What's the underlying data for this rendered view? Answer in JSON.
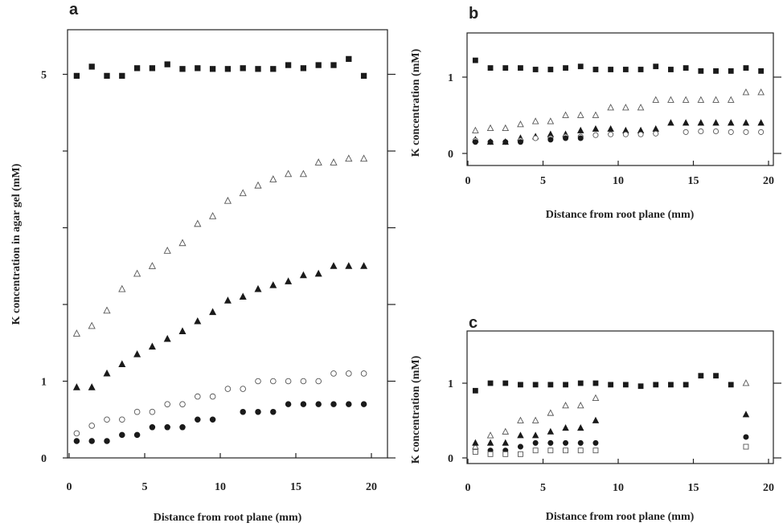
{
  "chart_data": [
    {
      "id": "a",
      "type": "scatter",
      "panel_label": "a",
      "xlabel": "Distance from root plane (mm)",
      "ylabel": "K concentration in agar gel (mM)",
      "xlim": [
        0,
        20
      ],
      "ylim": [
        0,
        5.5
      ],
      "x_ticks": [
        0,
        5,
        10,
        15,
        20
      ],
      "y_ticks": [
        {
          "value": 0,
          "label": "0"
        },
        {
          "value": 1,
          "label": "1"
        },
        {
          "value": 2,
          "label": ""
        },
        {
          "value": 3,
          "label": ""
        },
        {
          "value": 4,
          "label": ""
        },
        {
          "value": 5,
          "label": "5"
        }
      ],
      "grid": false,
      "series": [
        {
          "marker": "square-filled",
          "points": [
            [
              0.5,
              4.98
            ],
            [
              1.5,
              5.1
            ],
            [
              2.5,
              4.98
            ],
            [
              3.5,
              4.98
            ],
            [
              4.5,
              5.08
            ],
            [
              5.5,
              5.08
            ],
            [
              6.5,
              5.13
            ],
            [
              7.5,
              5.07
            ],
            [
              8.5,
              5.08
            ],
            [
              9.5,
              5.07
            ],
            [
              10.5,
              5.07
            ],
            [
              11.5,
              5.08
            ],
            [
              12.5,
              5.07
            ],
            [
              13.5,
              5.07
            ],
            [
              14.5,
              5.12
            ],
            [
              15.5,
              5.08
            ],
            [
              16.5,
              5.12
            ],
            [
              17.5,
              5.12
            ],
            [
              18.5,
              5.2
            ],
            [
              19.5,
              4.98
            ]
          ]
        },
        {
          "marker": "triangle-open",
          "points": [
            [
              0.5,
              1.62
            ],
            [
              1.5,
              1.72
            ],
            [
              2.5,
              1.92
            ],
            [
              3.5,
              2.2
            ],
            [
              4.5,
              2.4
            ],
            [
              5.5,
              2.5
            ],
            [
              6.5,
              2.7
            ],
            [
              7.5,
              2.8
            ],
            [
              8.5,
              3.05
            ],
            [
              9.5,
              3.15
            ],
            [
              10.5,
              3.35
            ],
            [
              11.5,
              3.45
            ],
            [
              12.5,
              3.55
            ],
            [
              13.5,
              3.63
            ],
            [
              14.5,
              3.7
            ],
            [
              15.5,
              3.7
            ],
            [
              16.5,
              3.85
            ],
            [
              17.5,
              3.85
            ],
            [
              18.5,
              3.9
            ],
            [
              19.5,
              3.9
            ]
          ]
        },
        {
          "marker": "triangle-filled",
          "points": [
            [
              0.5,
              0.92
            ],
            [
              1.5,
              0.92
            ],
            [
              2.5,
              1.1
            ],
            [
              3.5,
              1.22
            ],
            [
              4.5,
              1.35
            ],
            [
              5.5,
              1.45
            ],
            [
              6.5,
              1.55
            ],
            [
              7.5,
              1.65
            ],
            [
              8.5,
              1.78
            ],
            [
              9.5,
              1.9
            ],
            [
              10.5,
              2.05
            ],
            [
              11.5,
              2.1
            ],
            [
              12.5,
              2.2
            ],
            [
              13.5,
              2.25
            ],
            [
              14.5,
              2.3
            ],
            [
              15.5,
              2.38
            ],
            [
              16.5,
              2.4
            ],
            [
              17.5,
              2.5
            ],
            [
              18.5,
              2.5
            ],
            [
              19.5,
              2.5
            ]
          ]
        },
        {
          "marker": "circle-open",
          "points": [
            [
              0.5,
              0.32
            ],
            [
              1.5,
              0.42
            ],
            [
              2.5,
              0.5
            ],
            [
              3.5,
              0.5
            ],
            [
              4.5,
              0.6
            ],
            [
              5.5,
              0.6
            ],
            [
              6.5,
              0.7
            ],
            [
              7.5,
              0.7
            ],
            [
              8.5,
              0.8
            ],
            [
              9.5,
              0.8
            ],
            [
              10.5,
              0.9
            ],
            [
              11.5,
              0.9
            ],
            [
              12.5,
              1.0
            ],
            [
              13.5,
              1.0
            ],
            [
              14.5,
              1.0
            ],
            [
              15.5,
              1.0
            ],
            [
              16.5,
              1.0
            ],
            [
              17.5,
              1.1
            ],
            [
              18.5,
              1.1
            ],
            [
              19.5,
              1.1
            ]
          ]
        },
        {
          "marker": "circle-filled",
          "points": [
            [
              0.5,
              0.22
            ],
            [
              1.5,
              0.22
            ],
            [
              2.5,
              0.22
            ],
            [
              3.5,
              0.3
            ],
            [
              4.5,
              0.3
            ],
            [
              5.5,
              0.4
            ],
            [
              6.5,
              0.4
            ],
            [
              7.5,
              0.4
            ],
            [
              8.5,
              0.5
            ],
            [
              9.5,
              0.5
            ],
            [
              11.5,
              0.6
            ],
            [
              12.5,
              0.6
            ],
            [
              13.5,
              0.6
            ],
            [
              14.5,
              0.7
            ],
            [
              15.5,
              0.7
            ],
            [
              16.5,
              0.7
            ],
            [
              17.5,
              0.7
            ],
            [
              18.5,
              0.7
            ],
            [
              19.5,
              0.7
            ]
          ]
        }
      ]
    },
    {
      "id": "b",
      "type": "scatter",
      "panel_label": "b",
      "xlabel": "Distance from root plane (mm)",
      "ylabel": "K concentration (mM)",
      "xlim": [
        0,
        20
      ],
      "ylim": [
        0,
        1.5
      ],
      "x_ticks": [
        0,
        5,
        10,
        15,
        20
      ],
      "y_ticks": [
        {
          "value": 0,
          "label": "0"
        },
        {
          "value": 1,
          "label": "1"
        }
      ],
      "grid": false,
      "series": [
        {
          "marker": "square-filled",
          "points": [
            [
              0.5,
              1.22
            ],
            [
              1.5,
              1.12
            ],
            [
              2.5,
              1.12
            ],
            [
              3.5,
              1.12
            ],
            [
              4.5,
              1.1
            ],
            [
              5.5,
              1.1
            ],
            [
              6.5,
              1.12
            ],
            [
              7.5,
              1.14
            ],
            [
              8.5,
              1.1
            ],
            [
              9.5,
              1.1
            ],
            [
              10.5,
              1.1
            ],
            [
              11.5,
              1.1
            ],
            [
              12.5,
              1.14
            ],
            [
              13.5,
              1.1
            ],
            [
              14.5,
              1.12
            ],
            [
              15.5,
              1.08
            ],
            [
              16.5,
              1.08
            ],
            [
              17.5,
              1.08
            ],
            [
              18.5,
              1.12
            ],
            [
              19.5,
              1.08
            ]
          ]
        },
        {
          "marker": "triangle-open",
          "points": [
            [
              0.5,
              0.3
            ],
            [
              1.5,
              0.33
            ],
            [
              2.5,
              0.33
            ],
            [
              3.5,
              0.38
            ],
            [
              4.5,
              0.42
            ],
            [
              5.5,
              0.42
            ],
            [
              6.5,
              0.5
            ],
            [
              7.5,
              0.5
            ],
            [
              8.5,
              0.5
            ],
            [
              9.5,
              0.6
            ],
            [
              10.5,
              0.6
            ],
            [
              11.5,
              0.6
            ],
            [
              12.5,
              0.7
            ],
            [
              13.5,
              0.7
            ],
            [
              14.5,
              0.7
            ],
            [
              15.5,
              0.7
            ],
            [
              16.5,
              0.7
            ],
            [
              17.5,
              0.7
            ],
            [
              18.5,
              0.8
            ],
            [
              19.5,
              0.8
            ]
          ]
        },
        {
          "marker": "triangle-filled",
          "points": [
            [
              0.5,
              0.18
            ],
            [
              1.5,
              0.15
            ],
            [
              2.5,
              0.15
            ],
            [
              3.5,
              0.2
            ],
            [
              4.5,
              0.22
            ],
            [
              5.5,
              0.25
            ],
            [
              6.5,
              0.25
            ],
            [
              7.5,
              0.3
            ],
            [
              8.5,
              0.32
            ],
            [
              9.5,
              0.32
            ],
            [
              10.5,
              0.3
            ],
            [
              11.5,
              0.3
            ],
            [
              12.5,
              0.32
            ],
            [
              13.5,
              0.4
            ],
            [
              14.5,
              0.4
            ],
            [
              15.5,
              0.4
            ],
            [
              16.5,
              0.4
            ],
            [
              17.5,
              0.4
            ],
            [
              18.5,
              0.4
            ],
            [
              19.5,
              0.4
            ]
          ]
        },
        {
          "marker": "circle-open",
          "points": [
            [
              0.5,
              0.17
            ],
            [
              3.5,
              0.17
            ],
            [
              4.5,
              0.2
            ],
            [
              5.5,
              0.2
            ],
            [
              6.5,
              0.22
            ],
            [
              7.5,
              0.22
            ],
            [
              8.5,
              0.24
            ],
            [
              9.5,
              0.25
            ],
            [
              10.5,
              0.25
            ],
            [
              11.5,
              0.25
            ],
            [
              12.5,
              0.26
            ],
            [
              14.5,
              0.28
            ],
            [
              15.5,
              0.29
            ],
            [
              16.5,
              0.29
            ],
            [
              17.5,
              0.28
            ],
            [
              18.5,
              0.28
            ],
            [
              19.5,
              0.28
            ]
          ]
        },
        {
          "marker": "circle-filled",
          "points": [
            [
              0.5,
              0.15
            ],
            [
              1.5,
              0.15
            ],
            [
              2.5,
              0.15
            ],
            [
              3.5,
              0.15
            ],
            [
              5.5,
              0.18
            ],
            [
              6.5,
              0.2
            ],
            [
              7.5,
              0.2
            ]
          ]
        }
      ]
    },
    {
      "id": "c",
      "type": "scatter",
      "panel_label": "c",
      "xlabel": "Distance from root plane (mm)",
      "ylabel": "K concentration  (mM)",
      "xlim": [
        0,
        20
      ],
      "ylim": [
        0,
        1.5
      ],
      "x_ticks": [
        0,
        5,
        10,
        15,
        20
      ],
      "y_ticks": [
        {
          "value": 0,
          "label": "0"
        },
        {
          "value": 1,
          "label": "1"
        }
      ],
      "grid": false,
      "series": [
        {
          "marker": "square-filled",
          "points": [
            [
              0.5,
              0.9
            ],
            [
              1.5,
              1.0
            ],
            [
              2.5,
              1.0
            ],
            [
              3.5,
              0.98
            ],
            [
              4.5,
              0.98
            ],
            [
              5.5,
              0.98
            ],
            [
              6.5,
              0.98
            ],
            [
              7.5,
              1.0
            ],
            [
              8.5,
              1.0
            ],
            [
              9.5,
              0.98
            ],
            [
              10.5,
              0.98
            ],
            [
              11.5,
              0.96
            ],
            [
              12.5,
              0.98
            ],
            [
              13.5,
              0.98
            ],
            [
              14.5,
              0.98
            ],
            [
              15.5,
              1.1
            ],
            [
              16.5,
              1.1
            ],
            [
              17.5,
              0.98
            ]
          ]
        },
        {
          "marker": "triangle-open",
          "points": [
            [
              0.5,
              0.15
            ],
            [
              1.5,
              0.3
            ],
            [
              2.5,
              0.35
            ],
            [
              3.5,
              0.5
            ],
            [
              4.5,
              0.5
            ],
            [
              5.5,
              0.6
            ],
            [
              6.5,
              0.7
            ],
            [
              7.5,
              0.7
            ],
            [
              8.5,
              0.8
            ],
            [
              18.5,
              1.0
            ]
          ]
        },
        {
          "marker": "triangle-filled",
          "points": [
            [
              0.5,
              0.2
            ],
            [
              1.5,
              0.2
            ],
            [
              2.5,
              0.2
            ],
            [
              3.5,
              0.3
            ],
            [
              4.5,
              0.3
            ],
            [
              5.5,
              0.35
            ],
            [
              6.5,
              0.4
            ],
            [
              7.5,
              0.4
            ],
            [
              8.5,
              0.5
            ],
            [
              18.5,
              0.58
            ]
          ]
        },
        {
          "marker": "circle-filled",
          "points": [
            [
              0.5,
              0.08
            ],
            [
              1.5,
              0.1
            ],
            [
              2.5,
              0.1
            ],
            [
              3.5,
              0.15
            ],
            [
              4.5,
              0.2
            ],
            [
              5.5,
              0.2
            ],
            [
              6.5,
              0.2
            ],
            [
              7.5,
              0.2
            ],
            [
              8.5,
              0.2
            ],
            [
              18.5,
              0.28
            ]
          ]
        },
        {
          "marker": "square-open",
          "points": [
            [
              0.5,
              0.08
            ],
            [
              1.5,
              0.05
            ],
            [
              2.5,
              0.05
            ],
            [
              3.5,
              0.05
            ],
            [
              4.5,
              0.1
            ],
            [
              5.5,
              0.1
            ],
            [
              6.5,
              0.1
            ],
            [
              7.5,
              0.1
            ],
            [
              8.5,
              0.1
            ],
            [
              18.5,
              0.15
            ]
          ]
        }
      ]
    }
  ]
}
